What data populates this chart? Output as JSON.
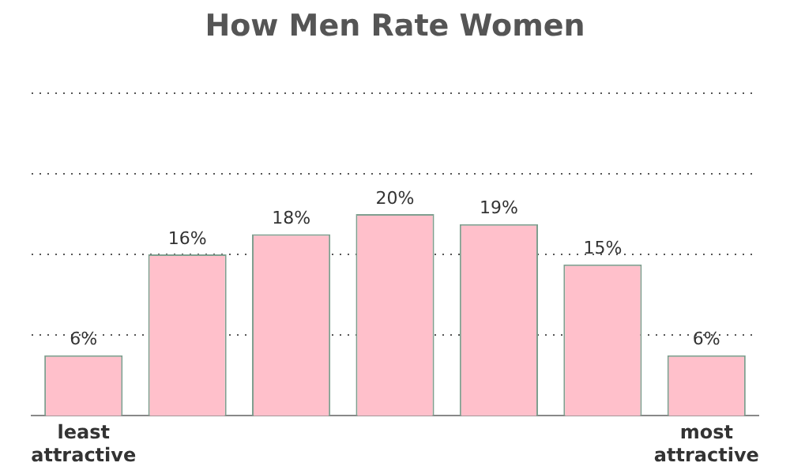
{
  "chart_data": {
    "type": "bar",
    "title": "How Men Rate Women",
    "categories": [
      "least attractive",
      null,
      null,
      null,
      null,
      null,
      "most attractive"
    ],
    "values": [
      6,
      16,
      18,
      20,
      19,
      15,
      6
    ],
    "value_labels": [
      "6%",
      "16%",
      "18%",
      "20%",
      "19%",
      "15%",
      "6%"
    ],
    "color": "#ffc0cb",
    "ylim": [
      0,
      32
    ],
    "yticks": [
      {
        "value": 8,
        "label": null
      },
      {
        "value": 16,
        "label": null
      },
      {
        "value": 24,
        "label": null
      },
      {
        "value": 32,
        "label": null
      }
    ],
    "grid": "y",
    "tick_labels": "x",
    "legend": false
  }
}
